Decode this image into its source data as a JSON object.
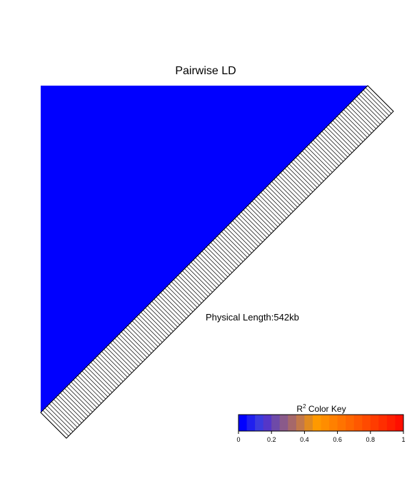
{
  "chart_data": {
    "type": "heatmap",
    "title": "Pairwise LD",
    "subtitle": "",
    "physical_length_label": "Physical Length:542kb",
    "matrix_fill": {
      "dominant_r2": 0.0,
      "description_color": "#0000ff"
    },
    "color_key": {
      "title": "R",
      "title_superscript": "2",
      "title_suffix": " Color Key",
      "range": [
        0,
        1
      ],
      "ticks": [
        "0",
        "0.2",
        "0.4",
        "0.6",
        "0.8",
        "1"
      ],
      "tick_values": [
        0,
        0.2,
        0.4,
        0.6,
        0.8,
        1
      ],
      "bins": [
        "#0000ff",
        "#1f1fef",
        "#3a3adf",
        "#5536c8",
        "#6e4aa8",
        "#8a5a8a",
        "#a6686a",
        "#c2784a",
        "#e08a20",
        "#ff9900",
        "#ff8d00",
        "#ff8000",
        "#ff7300",
        "#ff6600",
        "#ff5800",
        "#ff4a00",
        "#ff3c00",
        "#ff2e00",
        "#ff1f00",
        "#ff0f00"
      ]
    }
  }
}
